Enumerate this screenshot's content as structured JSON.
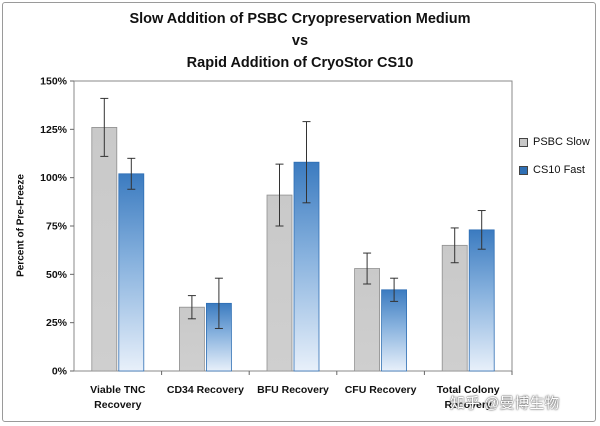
{
  "chart_data": {
    "type": "bar",
    "title_lines": [
      "Slow Addition of PSBC Cryopreservation Medium",
      "vs",
      "Rapid Addition of CryoStor CS10"
    ],
    "xlabel": "",
    "ylabel": "Percent of Pre-Freeze",
    "ylim": [
      0,
      150
    ],
    "yticks": [
      "0%",
      "25%",
      "50%",
      "75%",
      "100%",
      "125%",
      "150%"
    ],
    "ytick_values": [
      0,
      25,
      50,
      75,
      100,
      125,
      150
    ],
    "categories": [
      [
        "Viable TNC",
        "Recovery"
      ],
      [
        "CD34 Recovery"
      ],
      [
        "BFU Recovery"
      ],
      [
        "CFU Recovery"
      ],
      [
        "Total Colony",
        "Recovery"
      ]
    ],
    "series": [
      {
        "name": "PSBC Slow",
        "color": "#c8c8c8",
        "values": [
          126,
          33,
          91,
          53,
          65
        ],
        "errors": [
          15,
          6,
          16,
          8,
          9
        ]
      },
      {
        "name": "CS10 Fast",
        "color": "#2f6fb4",
        "values": [
          102,
          35,
          108,
          42,
          73
        ],
        "errors": [
          8,
          13,
          21,
          6,
          10
        ]
      }
    ],
    "legend_position": "right",
    "grid": false
  },
  "watermark": "知乎 @曼博生物"
}
